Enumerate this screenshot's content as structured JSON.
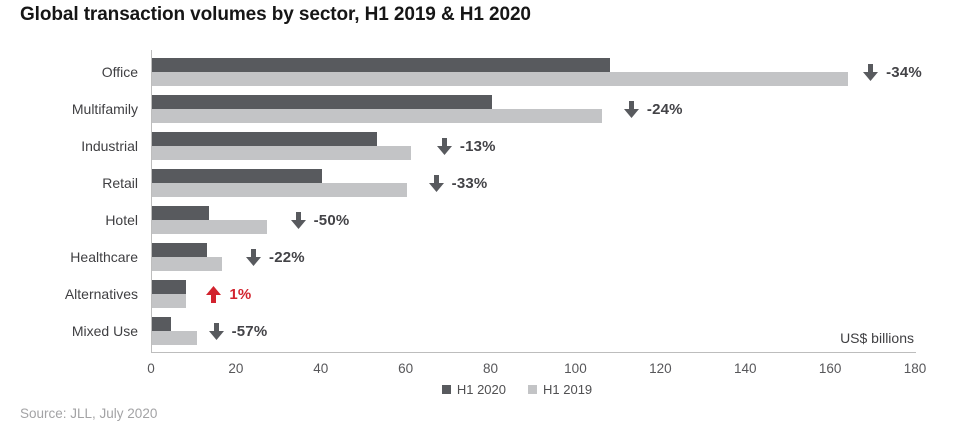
{
  "title": "Global transaction volumes by sector, H1 2019 & H1 2020",
  "source": "Source: JLL, July 2020",
  "chart_data": {
    "type": "bar",
    "orientation": "horizontal",
    "title": "Global transaction volumes by sector, H1 2019 & H1 2020",
    "unit_label": "US$ billions",
    "xlabel": "US$ billions",
    "ylabel": "",
    "xlim": [
      0,
      180
    ],
    "x_ticks": [
      0,
      20,
      40,
      60,
      80,
      100,
      120,
      140,
      160,
      180
    ],
    "grid": false,
    "legend_position": "bottom-center",
    "categories": [
      "Office",
      "Multifamily",
      "Industrial",
      "Retail",
      "Hotel",
      "Healthcare",
      "Alternatives",
      "Mixed Use"
    ],
    "series": [
      {
        "name": "H1 2020",
        "color": "#585a5e",
        "values": [
          108,
          80,
          53,
          40,
          13.5,
          13,
          8.1,
          4.5
        ]
      },
      {
        "name": "H1 2019",
        "color": "#c3c4c6",
        "values": [
          164,
          106,
          61,
          60,
          27,
          16.5,
          8,
          10.5
        ]
      }
    ],
    "annotations": [
      {
        "category": "Office",
        "label": "-34%",
        "direction": "down"
      },
      {
        "category": "Multifamily",
        "label": "-24%",
        "direction": "down"
      },
      {
        "category": "Industrial",
        "label": "-13%",
        "direction": "down"
      },
      {
        "category": "Retail",
        "label": "-33%",
        "direction": "down"
      },
      {
        "category": "Hotel",
        "label": "-50%",
        "direction": "down"
      },
      {
        "category": "Healthcare",
        "label": "-22%",
        "direction": "down"
      },
      {
        "category": "Alternatives",
        "label": "1%",
        "direction": "up"
      },
      {
        "category": "Mixed Use",
        "label": "-57%",
        "direction": "down"
      }
    ],
    "colors": {
      "bar_h1_2020": "#585a5e",
      "bar_h1_2019": "#c3c4c6",
      "decline_arrow": "#585a5e",
      "decline_text": "#434347",
      "growth_accent": "#d2232e",
      "axis_line": "#bdbdbd"
    }
  }
}
